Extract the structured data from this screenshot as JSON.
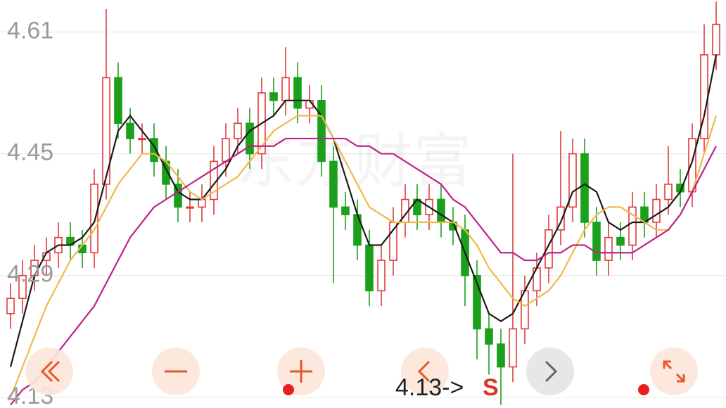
{
  "chart_data": {
    "type": "candlestick",
    "watermark": "东方财富",
    "annotation": {
      "text": "4.13->",
      "signal": "S"
    },
    "ylim": [
      4.116,
      4.652
    ],
    "yticks": [
      4.61,
      4.45,
      4.29,
      4.13
    ],
    "grid": true,
    "up_color": "#e03b3b",
    "down_color": "#1aa01a",
    "candles": {
      "open": [
        4.24,
        4.26,
        4.29,
        4.31,
        4.32,
        4.34,
        4.33,
        4.32,
        4.41,
        4.55,
        4.49,
        4.47,
        4.47,
        4.44,
        4.41,
        4.38,
        4.38,
        4.39,
        4.44,
        4.47,
        4.49,
        4.45,
        4.53,
        4.52,
        4.55,
        4.51,
        4.52,
        4.44,
        4.38,
        4.37,
        4.33,
        4.27,
        4.31,
        4.36,
        4.39,
        4.37,
        4.39,
        4.36,
        4.35,
        4.29,
        4.22,
        4.2,
        4.17,
        4.22,
        4.27,
        4.3,
        4.35,
        4.38,
        4.45,
        4.36,
        4.31,
        4.34,
        4.33,
        4.38,
        4.36,
        4.39,
        4.41,
        4.4,
        4.47,
        4.58
      ],
      "high": [
        4.28,
        4.31,
        4.33,
        4.34,
        4.36,
        4.36,
        4.35,
        4.43,
        4.64,
        4.57,
        4.51,
        4.49,
        4.49,
        4.46,
        4.43,
        4.4,
        4.41,
        4.46,
        4.49,
        4.51,
        4.51,
        4.55,
        4.55,
        4.59,
        4.57,
        4.54,
        4.54,
        4.46,
        4.4,
        4.39,
        4.35,
        4.33,
        4.38,
        4.41,
        4.41,
        4.41,
        4.41,
        4.38,
        4.37,
        4.31,
        4.24,
        4.22,
        4.45,
        4.29,
        4.32,
        4.37,
        4.48,
        4.47,
        4.47,
        4.38,
        4.36,
        4.36,
        4.4,
        4.4,
        4.41,
        4.46,
        4.43,
        4.49,
        4.62,
        4.65
      ],
      "low": [
        4.22,
        4.24,
        4.27,
        4.29,
        4.3,
        4.31,
        4.3,
        4.3,
        4.39,
        4.47,
        4.45,
        4.45,
        4.42,
        4.39,
        4.36,
        4.36,
        4.36,
        4.37,
        4.42,
        4.45,
        4.43,
        4.43,
        4.5,
        4.5,
        4.49,
        4.49,
        4.42,
        4.28,
        4.35,
        4.31,
        4.25,
        4.25,
        4.29,
        4.34,
        4.35,
        4.35,
        4.34,
        4.33,
        4.25,
        4.18,
        4.16,
        4.12,
        4.15,
        4.2,
        4.25,
        4.28,
        4.33,
        4.36,
        4.34,
        4.29,
        4.29,
        4.31,
        4.31,
        4.34,
        4.34,
        4.37,
        4.38,
        4.38,
        4.45,
        4.56
      ],
      "close": [
        4.26,
        4.29,
        4.31,
        4.32,
        4.34,
        4.33,
        4.32,
        4.41,
        4.55,
        4.49,
        4.47,
        4.47,
        4.44,
        4.41,
        4.38,
        4.38,
        4.39,
        4.44,
        4.47,
        4.49,
        4.45,
        4.53,
        4.52,
        4.55,
        4.51,
        4.52,
        4.44,
        4.38,
        4.37,
        4.33,
        4.27,
        4.31,
        4.36,
        4.39,
        4.37,
        4.39,
        4.36,
        4.35,
        4.29,
        4.22,
        4.2,
        4.17,
        4.22,
        4.27,
        4.3,
        4.35,
        4.38,
        4.45,
        4.36,
        4.31,
        4.34,
        4.33,
        4.38,
        4.36,
        4.39,
        4.41,
        4.4,
        4.47,
        4.58,
        4.62
      ]
    },
    "series": [
      {
        "color": "#1a1a1a",
        "values": [
          4.17,
          4.23,
          4.29,
          4.32,
          4.33,
          4.33,
          4.34,
          4.36,
          4.42,
          4.48,
          4.5,
          4.48,
          4.46,
          4.43,
          4.4,
          4.39,
          4.39,
          4.41,
          4.43,
          4.46,
          4.48,
          4.49,
          4.5,
          4.52,
          4.52,
          4.52,
          4.5,
          4.47,
          4.42,
          4.37,
          4.33,
          4.33,
          4.35,
          4.37,
          4.39,
          4.38,
          4.37,
          4.36,
          4.32,
          4.28,
          4.24,
          4.23,
          4.24,
          4.27,
          4.3,
          4.33,
          4.36,
          4.4,
          4.41,
          4.4,
          4.36,
          4.35,
          4.36,
          4.36,
          4.37,
          4.38,
          4.4,
          4.44,
          4.5,
          4.58
        ]
      },
      {
        "color": "#f0b94a",
        "values": [
          4.13,
          4.17,
          4.21,
          4.25,
          4.28,
          4.31,
          4.33,
          4.35,
          4.38,
          4.41,
          4.43,
          4.45,
          4.45,
          4.44,
          4.42,
          4.4,
          4.39,
          4.4,
          4.41,
          4.42,
          4.44,
          4.46,
          4.48,
          4.49,
          4.5,
          4.5,
          4.5,
          4.47,
          4.44,
          4.41,
          4.38,
          4.37,
          4.36,
          4.36,
          4.36,
          4.36,
          4.36,
          4.36,
          4.35,
          4.33,
          4.3,
          4.28,
          4.26,
          4.25,
          4.26,
          4.27,
          4.29,
          4.32,
          4.35,
          4.37,
          4.38,
          4.38,
          4.37,
          4.36,
          4.35,
          4.35,
          4.37,
          4.4,
          4.45,
          4.5
        ]
      },
      {
        "color": "#c0208a",
        "values": [
          4.12,
          4.14,
          4.15,
          4.17,
          4.19,
          4.21,
          4.23,
          4.25,
          4.28,
          4.31,
          4.34,
          4.36,
          4.38,
          4.39,
          4.4,
          4.41,
          4.42,
          4.43,
          4.44,
          4.45,
          4.46,
          4.46,
          4.46,
          4.47,
          4.47,
          4.47,
          4.47,
          4.47,
          4.47,
          4.46,
          4.46,
          4.45,
          4.45,
          4.44,
          4.43,
          4.42,
          4.41,
          4.39,
          4.38,
          4.36,
          4.34,
          4.32,
          4.32,
          4.31,
          4.31,
          4.32,
          4.32,
          4.33,
          4.33,
          4.32,
          4.32,
          4.32,
          4.32,
          4.33,
          4.34,
          4.35,
          4.37,
          4.4,
          4.43,
          4.46
        ]
      }
    ]
  }
}
